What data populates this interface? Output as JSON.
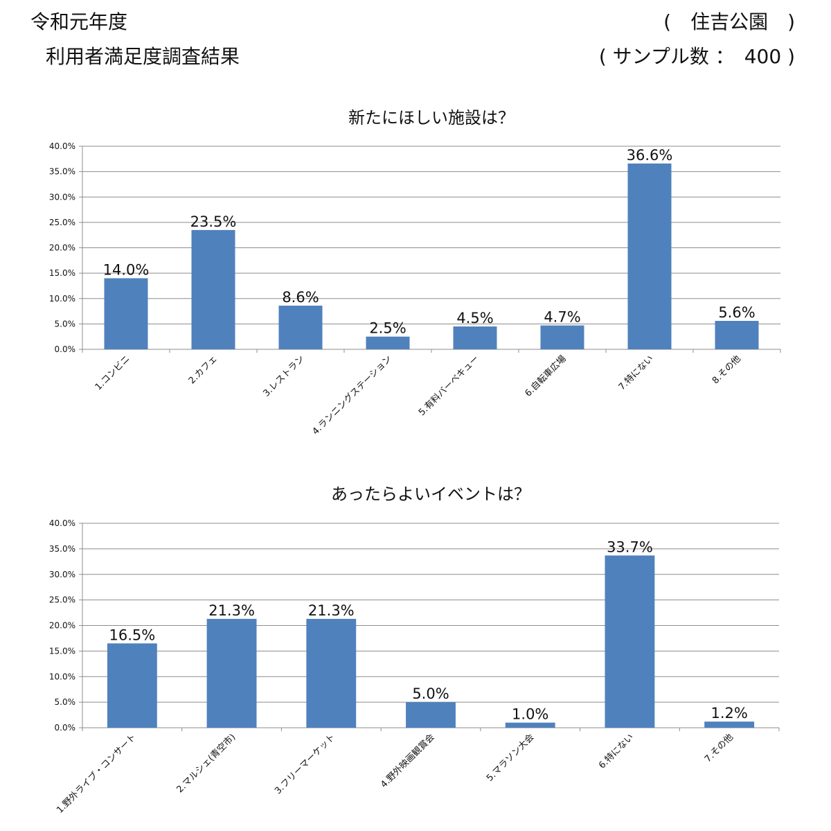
{
  "header": {
    "year": "令和元年度",
    "survey_title": "利用者満足度調査結果",
    "park": "(　住吉公園　)",
    "sample": "( サンプル数 ：　400 )"
  },
  "chart_data": [
    {
      "type": "bar",
      "title": "新たにほしい施設は？",
      "categories": [
        "1.コンビニ",
        "2.カフェ",
        "3.レストラン",
        "4.ランニングステーション",
        "5.有料バーベキュー",
        "6.自転車広場",
        "7.特にない",
        "8.その他"
      ],
      "values": [
        14.0,
        23.5,
        8.6,
        2.5,
        4.5,
        4.7,
        36.6,
        5.6
      ],
      "data_labels": [
        "14.0%",
        "23.5%",
        "8.6%",
        "2.5%",
        "4.5%",
        "4.7%",
        "36.6%",
        "5.6%"
      ],
      "ylim": [
        0,
        40
      ],
      "yticks": [
        "0.0%",
        "5.0%",
        "10.0%",
        "15.0%",
        "20.0%",
        "25.0%",
        "30.0%",
        "35.0%",
        "40.0%"
      ],
      "grid": true,
      "color": "#4f81bd"
    },
    {
      "type": "bar",
      "title": "あったらよいイベントは？",
      "categories": [
        "1.野外ライブ・コンサート",
        "2.マルシェ(青空市)",
        "3.フリーマーケット",
        "4.野外映画観賞会",
        "5.マラソン大会",
        "6.特にない",
        "7.その他"
      ],
      "values": [
        16.5,
        21.3,
        21.3,
        5.0,
        1.0,
        33.7,
        1.2
      ],
      "data_labels": [
        "16.5%",
        "21.3%",
        "21.3%",
        "5.0%",
        "1.0%",
        "33.7%",
        "1.2%"
      ],
      "ylim": [
        0,
        40
      ],
      "yticks": [
        "0.0%",
        "5.0%",
        "10.0%",
        "15.0%",
        "20.0%",
        "25.0%",
        "30.0%",
        "35.0%",
        "40.0%"
      ],
      "grid": true,
      "color": "#4f81bd"
    }
  ]
}
